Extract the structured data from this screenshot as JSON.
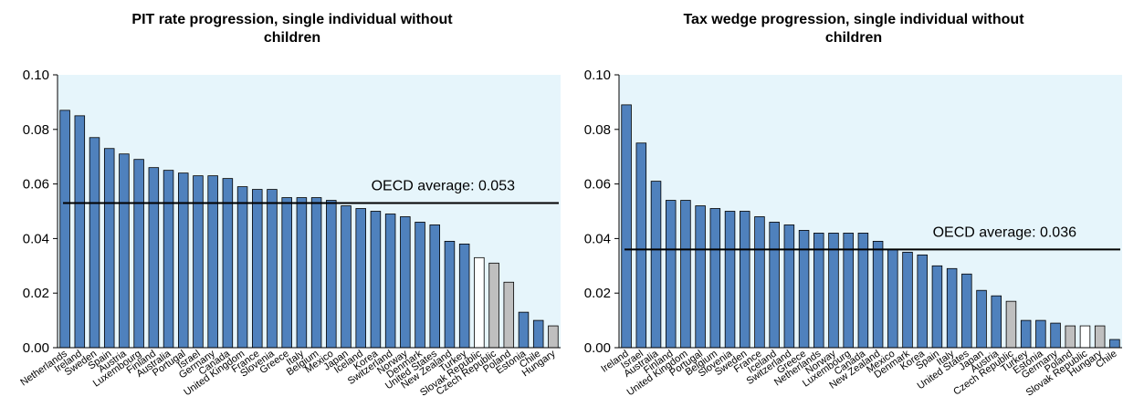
{
  "chart_data": [
    {
      "type": "bar",
      "title": "PIT rate progression, single individual without\nchildren",
      "ylim": [
        0,
        0.1
      ],
      "yticks": [
        "0.00",
        "0.02",
        "0.04",
        "0.06",
        "0.08",
        "0.10"
      ],
      "average": {
        "label": "OECD average: 0.053",
        "value": 0.053
      },
      "colors": {
        "default": "#4f81bd",
        "white": "#ffffff",
        "grey": "#bfbfbf",
        "plot_bg": "#e6f5fb"
      },
      "categories": [
        "Netherlands",
        "Ireland",
        "Sweden",
        "Spain",
        "Austria",
        "Luxembourg",
        "Finland",
        "Australia",
        "Portugal",
        "Israel",
        "Germany",
        "Canada",
        "United Kingdom",
        "France",
        "Slovenia",
        "Greece",
        "Italy",
        "Belgium",
        "Mexico",
        "Japan",
        "Iceland",
        "Korea",
        "Switzerland",
        "Norway",
        "Denmark",
        "United States",
        "New Zealand",
        "Turkey",
        "Slovak Republic",
        "Czech Republic",
        "Poland",
        "Estonia",
        "Chile",
        "Hungary"
      ],
      "values": [
        0.087,
        0.085,
        0.077,
        0.073,
        0.071,
        0.069,
        0.066,
        0.065,
        0.064,
        0.063,
        0.063,
        0.062,
        0.059,
        0.058,
        0.058,
        0.055,
        0.055,
        0.055,
        0.054,
        0.052,
        0.051,
        0.05,
        0.049,
        0.048,
        0.046,
        0.045,
        0.039,
        0.038,
        0.033,
        0.031,
        0.024,
        0.013,
        0.01,
        0.008
      ],
      "bar_colors": [
        "default",
        "default",
        "default",
        "default",
        "default",
        "default",
        "default",
        "default",
        "default",
        "default",
        "default",
        "default",
        "default",
        "default",
        "default",
        "default",
        "default",
        "default",
        "default",
        "default",
        "default",
        "default",
        "default",
        "default",
        "default",
        "default",
        "default",
        "default",
        "white",
        "grey",
        "grey",
        "default",
        "default",
        "grey"
      ]
    },
    {
      "type": "bar",
      "title": "Tax wedge progression, single individual without\nchildren",
      "ylim": [
        0,
        0.1
      ],
      "yticks": [
        "0.00",
        "0.02",
        "0.04",
        "0.06",
        "0.08",
        "0.10"
      ],
      "average": {
        "label": "OECD average: 0.036",
        "value": 0.036
      },
      "colors": {
        "default": "#4f81bd",
        "white": "#ffffff",
        "grey": "#bfbfbf",
        "plot_bg": "#e6f5fb"
      },
      "categories": [
        "Ireland",
        "Israel",
        "Australia",
        "Finland",
        "United Kingdom",
        "Portugal",
        "Belgium",
        "Slovenia",
        "Sweden",
        "France",
        "Iceland",
        "Switzerland",
        "Greece",
        "Netherlands",
        "Norway",
        "Luxembourg",
        "Canada",
        "New Zealand",
        "Mexico",
        "Denmark",
        "Korea",
        "Spain",
        "Italy",
        "United States",
        "Japan",
        "Austria",
        "Czech Republic",
        "Turkey",
        "Estonia",
        "Germany",
        "Poland",
        "Slovak Republic",
        "Hungary",
        "Chile"
      ],
      "values": [
        0.089,
        0.075,
        0.061,
        0.054,
        0.054,
        0.052,
        0.051,
        0.05,
        0.05,
        0.048,
        0.046,
        0.045,
        0.043,
        0.042,
        0.042,
        0.042,
        0.042,
        0.039,
        0.036,
        0.035,
        0.034,
        0.03,
        0.029,
        0.027,
        0.021,
        0.019,
        0.017,
        0.01,
        0.01,
        0.009,
        0.008,
        0.008,
        0.008,
        0.003
      ],
      "bar_colors": [
        "default",
        "default",
        "default",
        "default",
        "default",
        "default",
        "default",
        "default",
        "default",
        "default",
        "default",
        "default",
        "default",
        "default",
        "default",
        "default",
        "default",
        "default",
        "default",
        "default",
        "default",
        "default",
        "default",
        "default",
        "default",
        "default",
        "grey",
        "default",
        "default",
        "default",
        "grey",
        "white",
        "grey",
        "default"
      ]
    }
  ]
}
